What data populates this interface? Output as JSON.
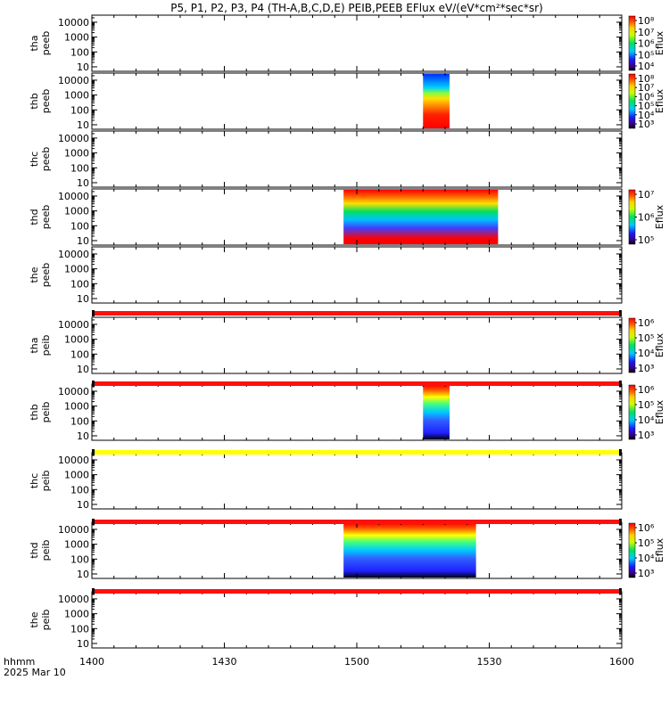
{
  "title": "P5, P1, P2, P3, P4 (TH-A,B,C,D,E) PEIB,PEEB EFlux eV/(eV*cm²*sec*sr)",
  "footer": {
    "time_label": "hhmm",
    "date_label": "2025 Mar 10"
  },
  "colors": {
    "red_bar": "#ff1010",
    "yellow_bar": "#ffff00",
    "black": "#000000"
  },
  "chart_data": {
    "type": "heatmap",
    "x_ticks": [
      "1400",
      "1430",
      "1500",
      "1530",
      "1600"
    ],
    "x_range": [
      "14:00",
      "16:00"
    ],
    "y_scale": "log",
    "y_ticks": [
      "10",
      "100",
      "1000",
      "10000"
    ],
    "panels": [
      {
        "ylabel": [
          "tha",
          "peeb"
        ],
        "colorbar": {
          "ticks": [
            "10⁸",
            "10⁷",
            "10⁶",
            "10⁵",
            "10⁴"
          ],
          "label": "Eflux"
        },
        "data_intervals": []
      },
      {
        "ylabel": [
          "thb",
          "peeb"
        ],
        "colorbar": {
          "ticks": [
            "10⁸",
            "10⁷",
            "10⁶",
            "10⁵",
            "10⁴",
            "10³"
          ],
          "label": "Eflux"
        },
        "data_intervals": [
          [
            "15:15",
            "15:21"
          ]
        ]
      },
      {
        "ylabel": [
          "thc",
          "peeb"
        ],
        "colorbar": null,
        "data_intervals": []
      },
      {
        "ylabel": [
          "thd",
          "peeb"
        ],
        "colorbar": {
          "ticks": [
            "10⁷",
            "10⁶",
            "10⁵"
          ],
          "label": "Eflux"
        },
        "data_intervals": [
          [
            "14:57",
            "15:32"
          ]
        ]
      },
      {
        "ylabel": [
          "the",
          "peeb"
        ],
        "colorbar": null,
        "data_intervals": []
      },
      {
        "ylabel": [
          "tha",
          "peib"
        ],
        "colorbar": {
          "ticks": [
            "10⁶",
            "10⁵",
            "10⁴",
            "10³"
          ],
          "label": "Eflux"
        },
        "data_intervals": []
      },
      {
        "ylabel": [
          "thb",
          "peib"
        ],
        "colorbar": {
          "ticks": [
            "10⁶",
            "10⁵",
            "10⁴",
            "10³"
          ],
          "label": "Eflux"
        },
        "data_intervals": [
          [
            "15:15",
            "15:21"
          ]
        ]
      },
      {
        "ylabel": [
          "thc",
          "peib"
        ],
        "colorbar": null,
        "data_intervals": []
      },
      {
        "ylabel": [
          "thd",
          "peib"
        ],
        "colorbar": {
          "ticks": [
            "10⁶",
            "10⁵",
            "10⁴",
            "10³"
          ],
          "label": "Eflux"
        },
        "data_intervals": [
          [
            "14:57",
            "15:27"
          ]
        ]
      },
      {
        "ylabel": [
          "the",
          "peib"
        ],
        "colorbar": null,
        "data_intervals": []
      }
    ],
    "separator_bars": [
      {
        "after_panel": 5,
        "color": "red"
      },
      {
        "after_panel": 6,
        "color": "red"
      },
      {
        "after_panel": 7,
        "color": "yellow"
      },
      {
        "after_panel": 8,
        "color": "red"
      },
      {
        "after_panel": 9,
        "color": "red"
      }
    ]
  }
}
